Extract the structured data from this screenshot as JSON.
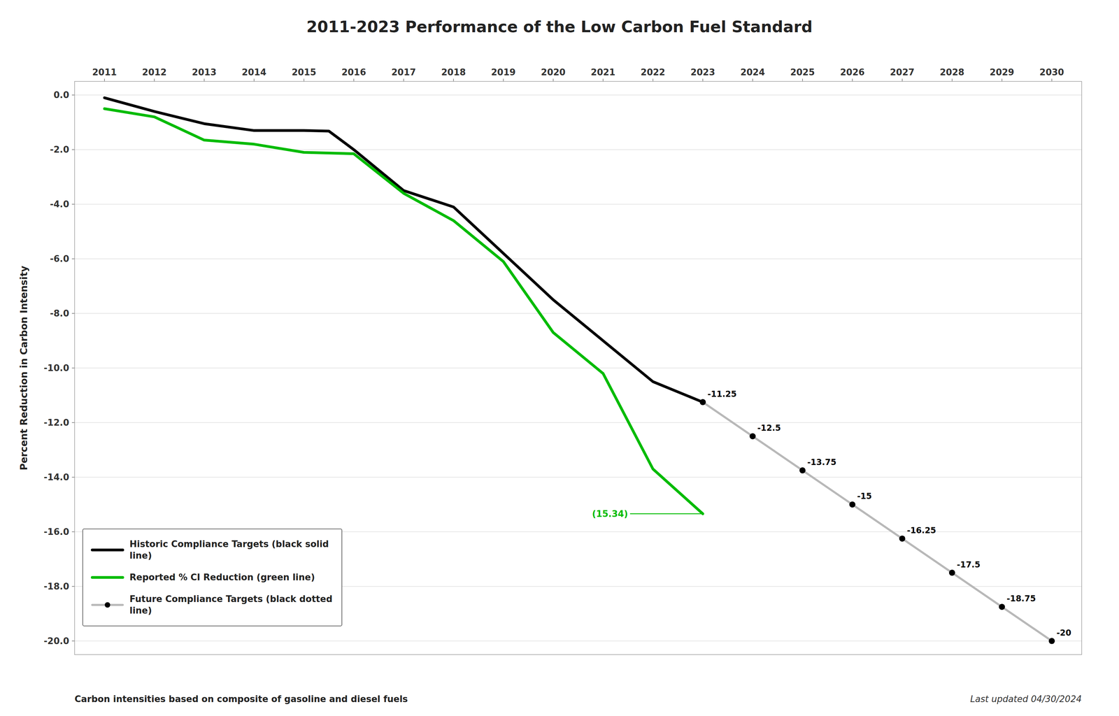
{
  "chart_data": {
    "type": "line",
    "title": "2011-2023 Performance of the Low Carbon Fuel Standard",
    "ylabel": "Percent Reduction in Carbon Intensity",
    "xlabel": "Carbon intensities based on composite of gasoline and diesel fuels",
    "annotations": [
      {
        "text": "(15.34)",
        "x": 2021.5,
        "y": -15.34
      },
      {
        "text": "Last updated 04/30/2024"
      }
    ],
    "xlim": [
      2010.4,
      2030.6
    ],
    "xticks": [
      2011,
      2012,
      2013,
      2014,
      2015,
      2016,
      2017,
      2018,
      2019,
      2020,
      2021,
      2022,
      2023,
      2024,
      2025,
      2026,
      2027,
      2028,
      2029,
      2030
    ],
    "ylim": [
      -20.5,
      0.5
    ],
    "yticks": [
      {
        "value": 0.0,
        "label": "0.0"
      },
      {
        "value": -2.0,
        "label": "-2.0"
      },
      {
        "value": -4.0,
        "label": "-4.0"
      },
      {
        "value": -6.0,
        "label": "-6.0"
      },
      {
        "value": -8.0,
        "label": "-8.0"
      },
      {
        "value": -10.0,
        "label": "-10.0"
      },
      {
        "value": -12.0,
        "label": "-12.0"
      },
      {
        "value": -14.0,
        "label": "-14.0"
      },
      {
        "value": -16.0,
        "label": "-16.0"
      },
      {
        "value": -18.0,
        "label": "-18.0"
      },
      {
        "value": -20.0,
        "label": "-20.0"
      }
    ],
    "grid": true,
    "legend": "lower left",
    "series": [
      {
        "name": "Historic Compliance Targets (black solid\nline)",
        "color": "#000000",
        "x": [
          2011,
          2012,
          2013,
          2014,
          2015,
          2015.5,
          2016,
          2017,
          2018,
          2019,
          2020,
          2021,
          2022,
          2023
        ],
        "values": [
          -0.1,
          -0.6,
          -1.05,
          -1.3,
          -1.3,
          -1.32,
          -2.0,
          -3.5,
          -4.1,
          -5.8,
          -7.5,
          -9.0,
          -10.5,
          -11.25
        ]
      },
      {
        "name": "Reported % CI Reduction (green line)",
        "color": "#00bb00",
        "x": [
          2011,
          2012,
          2013,
          2014,
          2015,
          2016,
          2017,
          2018,
          2019,
          2020,
          2021,
          2022,
          2023
        ],
        "values": [
          -0.5,
          -0.8,
          -1.65,
          -1.8,
          -2.1,
          -2.15,
          -3.6,
          -4.6,
          -6.1,
          -8.7,
          -10.2,
          -13.7,
          -15.34
        ]
      },
      {
        "name": "Future Compliance Targets (black dotted\nline)",
        "color": "#b8b8b8",
        "marker": "circle",
        "data_labels": true,
        "x": [
          2023,
          2024,
          2025,
          2026,
          2027,
          2028,
          2029,
          2030
        ],
        "values": [
          -11.25,
          -12.5,
          -13.75,
          -15.0,
          -16.25,
          -17.5,
          -18.75,
          -20.0
        ]
      }
    ]
  }
}
